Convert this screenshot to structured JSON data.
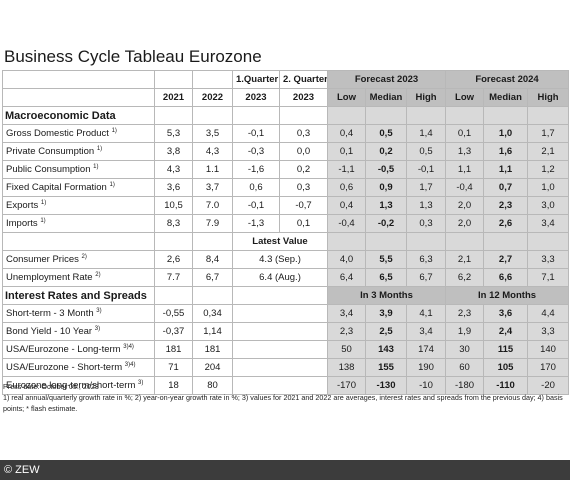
{
  "title": "Business Cycle Tableau Eurozone",
  "header": {
    "q1": "1.Quarter",
    "q2": "2. Quarter",
    "forecast2023": "Forecast 2023",
    "forecast2024": "Forecast 2024",
    "years": [
      "2021",
      "2022",
      "2023",
      "2023"
    ],
    "low": "Low",
    "median": "Median",
    "high": "High"
  },
  "sections": {
    "macro": "Macroeconomic Data",
    "interest": "Interest Rates and Spreads",
    "latest_value": "Latest Value",
    "in3": "In 3 Months",
    "in12": "In 12 Months"
  },
  "macro_rows": [
    {
      "label": "Gross Domestic Product",
      "sup": "1)",
      "v": [
        "5,3",
        "3,5",
        "-0,1",
        "0,3",
        "0,4",
        "0,5",
        "1,4",
        "0,1",
        "1,0",
        "1,7"
      ]
    },
    {
      "label": "Private Consumption",
      "sup": "1)",
      "v": [
        "3,8",
        "4,3",
        "-0,3",
        "0,0",
        "0,1",
        "0,2",
        "0,5",
        "1,3",
        "1,6",
        "2,1"
      ]
    },
    {
      "label": "Public Consumption",
      "sup": "1)",
      "v": [
        "4,3",
        "1.1",
        "-1,6",
        "0,2",
        "-1,1",
        "-0,5",
        "-0,1",
        "1,1",
        "1,1",
        "1,2"
      ]
    },
    {
      "label": "Fixed Capital Formation",
      "sup": "1)",
      "v": [
        "3,6",
        "3,7",
        "0,6",
        "0,3",
        "0,6",
        "0,9",
        "1,7",
        "-0,4",
        "0,7",
        "1,0"
      ]
    },
    {
      "label": "Exports",
      "sup": "1)",
      "v": [
        "10,5",
        "7.0",
        "-0,1",
        "-0,7",
        "0,4",
        "1,3",
        "1,3",
        "2,0",
        "2,3",
        "3,0"
      ]
    },
    {
      "label": "Imports",
      "sup": "1)",
      "v": [
        "8,3",
        "7.9",
        "-1,3",
        "0,1",
        "-0,4",
        "-0,2",
        "0,3",
        "2,0",
        "2,6",
        "3,4"
      ]
    }
  ],
  "price_rows": [
    {
      "label": "Consumer Prices",
      "sup": "2)",
      "v": [
        "2,6",
        "8,4",
        "4.3 (Sep.)",
        "4,0",
        "5,5",
        "6,3",
        "2,1",
        "2,7",
        "3,3"
      ]
    },
    {
      "label": "Unemployment Rate",
      "sup": "2)",
      "v": [
        "7.7",
        "6,7",
        "6.4 (Aug.)",
        "6,4",
        "6,5",
        "6,7",
        "6,2",
        "6,6",
        "7,1"
      ]
    }
  ],
  "interest_rows": [
    {
      "label": "Short-term - 3 Month",
      "sup": "3)",
      "v": [
        "-0,55",
        "0,34",
        "",
        "3,4",
        "3,9",
        "4,1",
        "2,3",
        "3,6",
        "4,4"
      ]
    },
    {
      "label": "Bond Yield - 10 Year",
      "sup": "3)",
      "v": [
        "-0,37",
        "1,14",
        "",
        "2,3",
        "2,5",
        "3,4",
        "1,9",
        "2,4",
        "3,3"
      ]
    },
    {
      "label": "USA/Eurozone - Long-term",
      "sup": "3)4)",
      "v": [
        "181",
        "181",
        "",
        "50",
        "143",
        "174",
        "30",
        "115",
        "140"
      ]
    },
    {
      "label": "USA/Eurozone - Short-term",
      "sup": "3)4)",
      "v": [
        "71",
        "204",
        "",
        "138",
        "155",
        "190",
        "60",
        "105",
        "170"
      ]
    },
    {
      "label": "Eurozone long-term/short-term",
      "sup": "3)",
      "v": [
        "18",
        "80",
        "",
        "-170",
        "-130",
        "-10",
        "-180",
        "-110",
        "-20"
      ]
    }
  ],
  "notes": {
    "press_date": "Press date: October 05., 2023",
    "footnotes": "1) real annual/quarterly growth rate in %; 2) year-on-year growth rate in %; 3) values for 2021 and 2022 are averages, interest rates and spreads from the previous day; 4) basis points; * flash estimate."
  },
  "footer": {
    "copyright": "© ZEW"
  },
  "colors": {
    "shade": "#d9d9d9",
    "header_shade": "#bfbfbf",
    "footer_bg": "#3c3c3c"
  }
}
